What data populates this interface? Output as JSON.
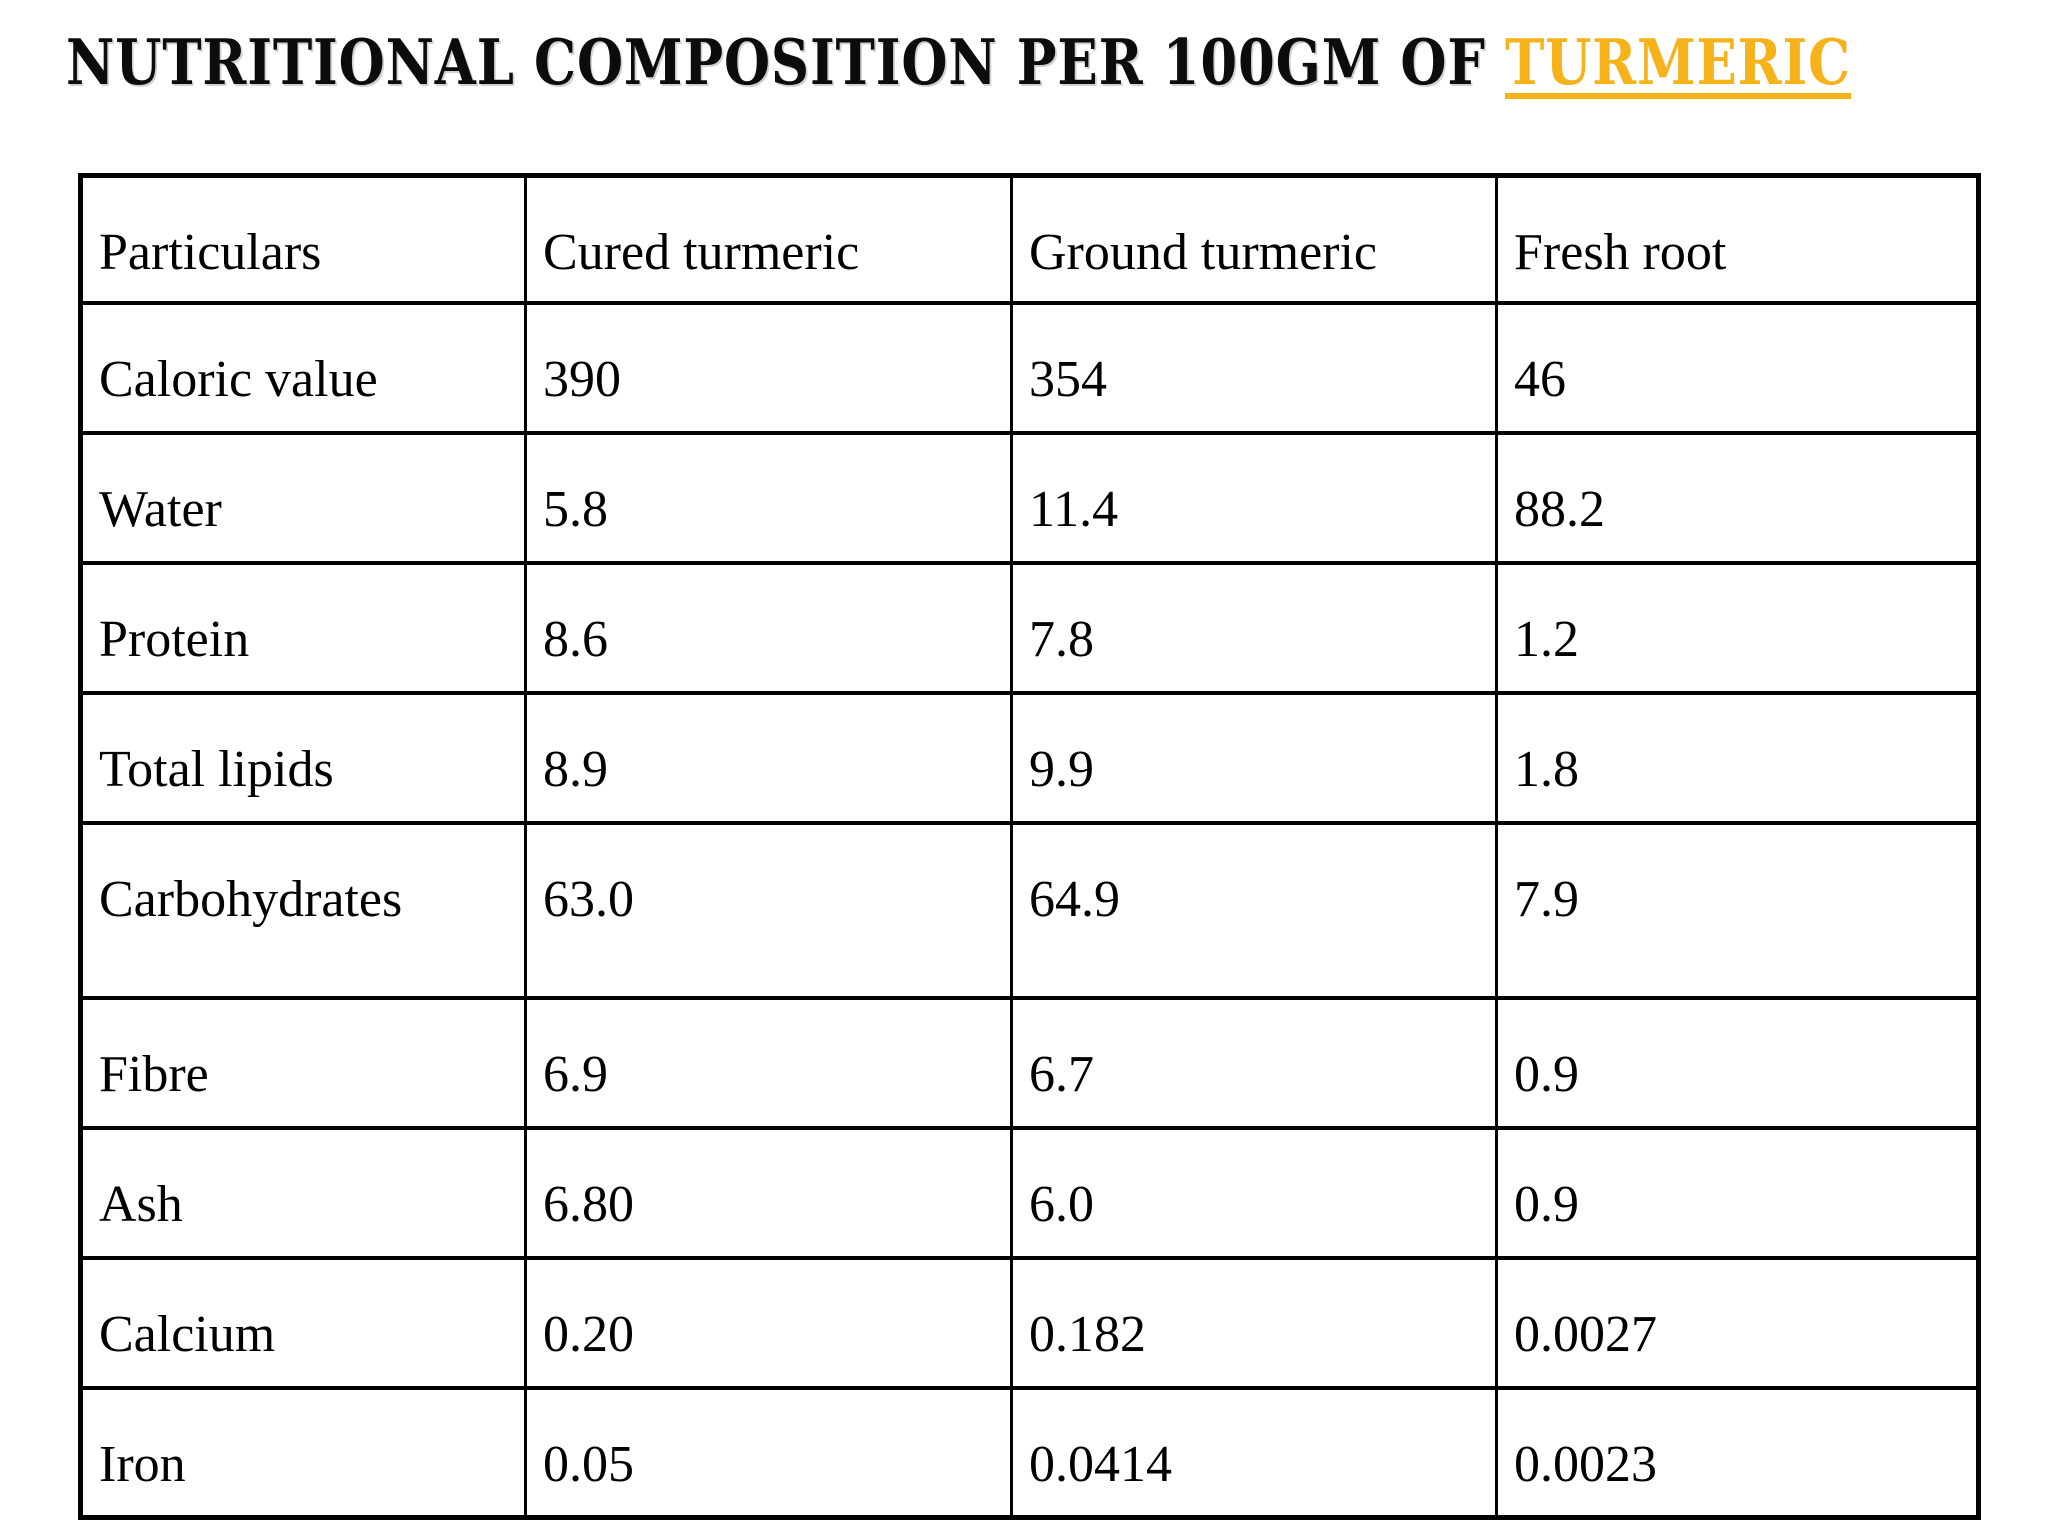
{
  "title": {
    "prefix": "NUTRITIONAL COMPOSITION PER 100GM OF ",
    "highlight": "TURMERIC",
    "highlight_color": "#f6b21b",
    "text_color": "#0c0c0c"
  },
  "table": {
    "columns": [
      "Particulars",
      "Cured turmeric",
      "Ground turmeric",
      "Fresh root"
    ],
    "rows": [
      {
        "label": "Caloric value",
        "values": [
          "390",
          "354",
          "46"
        ]
      },
      {
        "label": "Water",
        "values": [
          "5.8",
          "11.4",
          "88.2"
        ]
      },
      {
        "label": "Protein",
        "values": [
          "8.6",
          "7.8",
          "1.2"
        ]
      },
      {
        "label": "Total lipids",
        "values": [
          "8.9",
          "9.9",
          "1.8"
        ]
      },
      {
        "label": "Carbohydrates",
        "values": [
          "63.0",
          "64.9",
          "7.9"
        ],
        "tall": true
      },
      {
        "label": "Fibre",
        "values": [
          "6.9",
          "6.7",
          "0.9"
        ]
      },
      {
        "label": "Ash",
        "values": [
          "6.80",
          "6.0",
          "0.9"
        ]
      },
      {
        "label": "Calcium",
        "values": [
          "0.20",
          "0.182",
          "0.0027"
        ]
      },
      {
        "label": "Iron",
        "values": [
          "0.05",
          "0.0414",
          "0.0023"
        ]
      }
    ]
  },
  "chart_data": {
    "type": "table",
    "title": "Nutritional composition per 100gm of turmeric",
    "columns": [
      "Particulars",
      "Cured turmeric",
      "Ground turmeric",
      "Fresh root"
    ],
    "rows": [
      [
        "Caloric value",
        390,
        354,
        46
      ],
      [
        "Water",
        5.8,
        11.4,
        88.2
      ],
      [
        "Protein",
        8.6,
        7.8,
        1.2
      ],
      [
        "Total lipids",
        8.9,
        9.9,
        1.8
      ],
      [
        "Carbohydrates",
        63.0,
        64.9,
        7.9
      ],
      [
        "Fibre",
        6.9,
        6.7,
        0.9
      ],
      [
        "Ash",
        6.8,
        6.0,
        0.9
      ],
      [
        "Calcium",
        0.2,
        0.182,
        0.0027
      ],
      [
        "Iron",
        0.05,
        0.0414,
        0.0023
      ]
    ]
  }
}
